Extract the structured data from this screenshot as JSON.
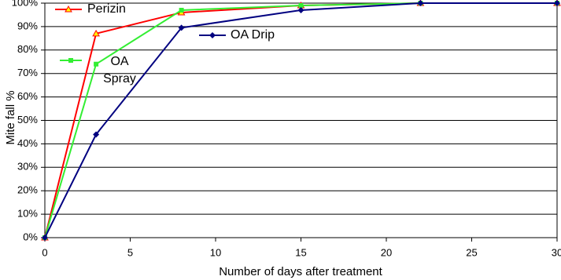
{
  "chart_data": {
    "type": "line",
    "x_label": "Number of days after treatment",
    "y_label": "Mite fall %",
    "xlim": [
      0,
      30
    ],
    "xticks": [
      0,
      5,
      10,
      15,
      20,
      25,
      30
    ],
    "ylim": [
      0,
      100
    ],
    "yticks": [
      {
        "value": 0,
        "label": "0%"
      },
      {
        "value": 10,
        "label": "10%"
      },
      {
        "value": 20,
        "label": "20%"
      },
      {
        "value": 30,
        "label": "30%"
      },
      {
        "value": 40,
        "label": "40%"
      },
      {
        "value": 50,
        "label": "50%"
      },
      {
        "value": 60,
        "label": "60%"
      },
      {
        "value": 70,
        "label": "70%"
      },
      {
        "value": 80,
        "label": "80%"
      },
      {
        "value": 90,
        "label": "90%"
      },
      {
        "value": 100,
        "label": "100%"
      }
    ],
    "grid": true,
    "series": [
      {
        "name": "Perizin",
        "color": "#ff0000",
        "marker": "triangle",
        "x": [
          0,
          3,
          8,
          15,
          22,
          30
        ],
        "values": [
          0,
          87,
          96,
          99,
          100,
          100
        ]
      },
      {
        "name": "OA Spray",
        "color": "#33ee33",
        "marker": "square",
        "x": [
          0,
          3,
          8,
          15,
          22,
          30
        ],
        "values": [
          0,
          74,
          97,
          99,
          100,
          100
        ]
      },
      {
        "name": "OA Drip",
        "color": "#000080",
        "marker": "diamond",
        "x": [
          0,
          3,
          8,
          15,
          22,
          30
        ],
        "values": [
          0,
          44,
          89.5,
          97,
          100,
          100
        ]
      }
    ]
  }
}
